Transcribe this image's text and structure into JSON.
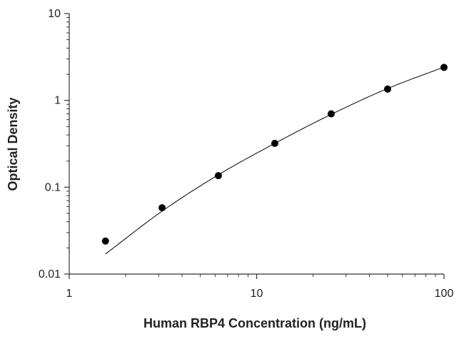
{
  "chart_data": {
    "type": "scatter",
    "title": "",
    "xlabel": "Human RBP4 Concentration (ng/mL)",
    "ylabel": "Optical Density",
    "xscale": "log",
    "yscale": "log",
    "xlim": [
      1,
      100
    ],
    "ylim": [
      0.01,
      10
    ],
    "grid": false,
    "x_ticks": [
      {
        "value": 1,
        "label": "1"
      },
      {
        "value": 10,
        "label": "10"
      },
      {
        "value": 100,
        "label": "100"
      }
    ],
    "y_ticks": [
      {
        "value": 0.01,
        "label": "0.01"
      },
      {
        "value": 0.1,
        "label": "0.1"
      },
      {
        "value": 1,
        "label": "1"
      },
      {
        "value": 10,
        "label": "10"
      }
    ],
    "series": [
      {
        "points": [
          {
            "x": 1.56,
            "y": 0.024
          },
          {
            "x": 3.13,
            "y": 0.058
          },
          {
            "x": 6.25,
            "y": 0.136
          },
          {
            "x": 12.5,
            "y": 0.32
          },
          {
            "x": 25,
            "y": 0.7
          },
          {
            "x": 50,
            "y": 1.35
          },
          {
            "x": 100,
            "y": 2.4
          }
        ]
      }
    ],
    "fit_curve": {
      "type": "power-law fit",
      "x_range": [
        1.56,
        100
      ],
      "points": [
        {
          "x": 1.56,
          "y": 0.017
        },
        {
          "x": 3.13,
          "y": 0.053
        },
        {
          "x": 6.25,
          "y": 0.139
        },
        {
          "x": 12.5,
          "y": 0.32
        },
        {
          "x": 25,
          "y": 0.69
        },
        {
          "x": 50,
          "y": 1.37
        },
        {
          "x": 100,
          "y": 2.42
        }
      ]
    },
    "colors": {
      "marker": "#000000",
      "line": "#000000",
      "axis": "#333333"
    }
  }
}
